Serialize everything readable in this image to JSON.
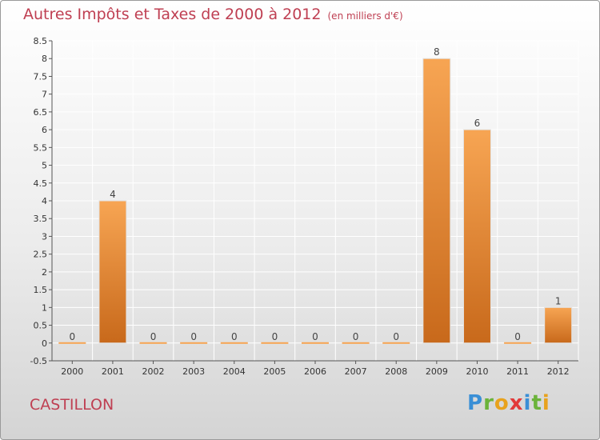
{
  "header": {
    "title": "Autres Impôts et Taxes de 2000 à 2012",
    "unit": "(en milliers d'€)"
  },
  "commune": "CASTILLON",
  "logo": {
    "text": "Proxiti"
  },
  "colors": {
    "bar_light": "#f7a553",
    "bar_dark": "#c8691b",
    "title": "#bf3f52",
    "grid": "#ffffff"
  },
  "chart_data": {
    "type": "bar",
    "categories": [
      "2000",
      "2001",
      "2002",
      "2003",
      "2004",
      "2005",
      "2006",
      "2007",
      "2008",
      "2009",
      "2010",
      "2011",
      "2012"
    ],
    "values": [
      0,
      4,
      0,
      0,
      0,
      0,
      0,
      0,
      0,
      8,
      6,
      0,
      1
    ],
    "value_labels": [
      "0",
      "4",
      "0",
      "0",
      "0",
      "0",
      "0",
      "0",
      "0",
      "8",
      "6",
      "0",
      "1"
    ],
    "ylim": [
      -0.5,
      8.5
    ],
    "yticks": [
      "-0.5",
      "0",
      "0.5",
      "1",
      "1.5",
      "2",
      "2.5",
      "3",
      "3.5",
      "4",
      "4.5",
      "5",
      "5.5",
      "6",
      "6.5",
      "7",
      "7.5",
      "8",
      "8.5"
    ],
    "ytick_values": [
      -0.5,
      0,
      0.5,
      1,
      1.5,
      2,
      2.5,
      3,
      3.5,
      4,
      4.5,
      5,
      5.5,
      6,
      6.5,
      7,
      7.5,
      8,
      8.5
    ],
    "grid": true,
    "xlabel": "",
    "ylabel": ""
  }
}
